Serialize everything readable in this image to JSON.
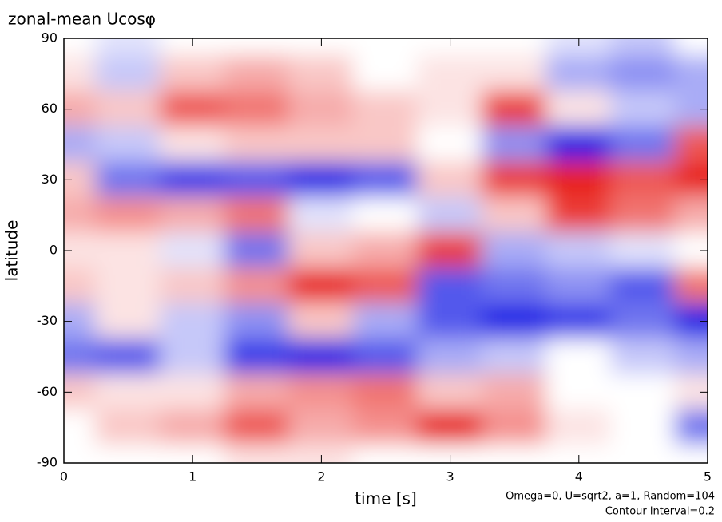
{
  "chart_data": {
    "type": "heatmap",
    "title": "zonal-mean Ucosφ",
    "x_label": "time [s]",
    "y_label": "latitude",
    "notes": [
      "Omega=0, U=sqrt2, a=1, Random=104",
      "Contour interval=0.2"
    ],
    "x": [
      0,
      0.5,
      1,
      1.5,
      2,
      2.5,
      3,
      3.5,
      4,
      4.5,
      5
    ],
    "y": [
      90,
      75,
      60,
      45,
      30,
      15,
      0,
      -15,
      -30,
      -45,
      -60,
      -75,
      -90
    ],
    "z": [
      [
        0,
        -0.2,
        0,
        0,
        0,
        0,
        0,
        0,
        -0.2,
        -0.4,
        0
      ],
      [
        0.2,
        -0.4,
        0.4,
        0.6,
        0.4,
        0,
        0.2,
        0.2,
        -0.6,
        -0.8,
        -0.6
      ],
      [
        0.6,
        0.4,
        1.2,
        1.0,
        0.6,
        0.4,
        0.2,
        1.4,
        0.2,
        -0.4,
        -0.6
      ],
      [
        -0.6,
        -0.4,
        0.2,
        0.4,
        0.4,
        0.4,
        0,
        -0.8,
        -1.6,
        -1.0,
        1.2
      ],
      [
        0.4,
        -1.0,
        -1.4,
        -1.2,
        -1.6,
        -1.2,
        0.4,
        1.4,
        1.8,
        1.2,
        1.6
      ],
      [
        0.6,
        0.8,
        0.6,
        1.0,
        -0.2,
        0,
        -0.4,
        0.4,
        1.4,
        1.0,
        0.6
      ],
      [
        0.2,
        0.2,
        -0.2,
        -1.0,
        0.4,
        0.6,
        1.4,
        -0.6,
        -0.4,
        -0.2,
        0
      ],
      [
        0.4,
        0.2,
        0.4,
        0.8,
        1.6,
        1.2,
        -1.2,
        -1.0,
        -0.8,
        -1.2,
        1.0
      ],
      [
        -0.6,
        0.2,
        -0.4,
        -0.8,
        0.4,
        -0.6,
        -1.2,
        -1.8,
        -1.4,
        -1.0,
        -1.6
      ],
      [
        -1.0,
        -1.2,
        -0.4,
        -1.4,
        -1.6,
        -1.2,
        -0.6,
        -0.4,
        0,
        -0.4,
        -0.6
      ],
      [
        0.4,
        0.2,
        0.2,
        0.6,
        0.8,
        1.0,
        0.4,
        0.6,
        0,
        0,
        0.2
      ],
      [
        0,
        0.4,
        0.6,
        1.2,
        0.6,
        0.8,
        1.6,
        0.8,
        0.2,
        0,
        -1.0
      ],
      [
        0,
        0,
        0,
        0.2,
        0.2,
        0,
        0,
        0,
        0,
        0,
        0
      ]
    ],
    "zlim": [
      -1.6,
      1.6
    ],
    "colors": {
      "positive": "#e8201c",
      "negative": "#1a22e6",
      "zero": "#ffffff"
    },
    "xlim": [
      0,
      5
    ],
    "ylim": [
      -90,
      90
    ],
    "xticks": [
      0,
      1,
      2,
      3,
      4,
      5
    ],
    "yticks": [
      -90,
      -60,
      -30,
      0,
      30,
      60,
      90
    ]
  }
}
